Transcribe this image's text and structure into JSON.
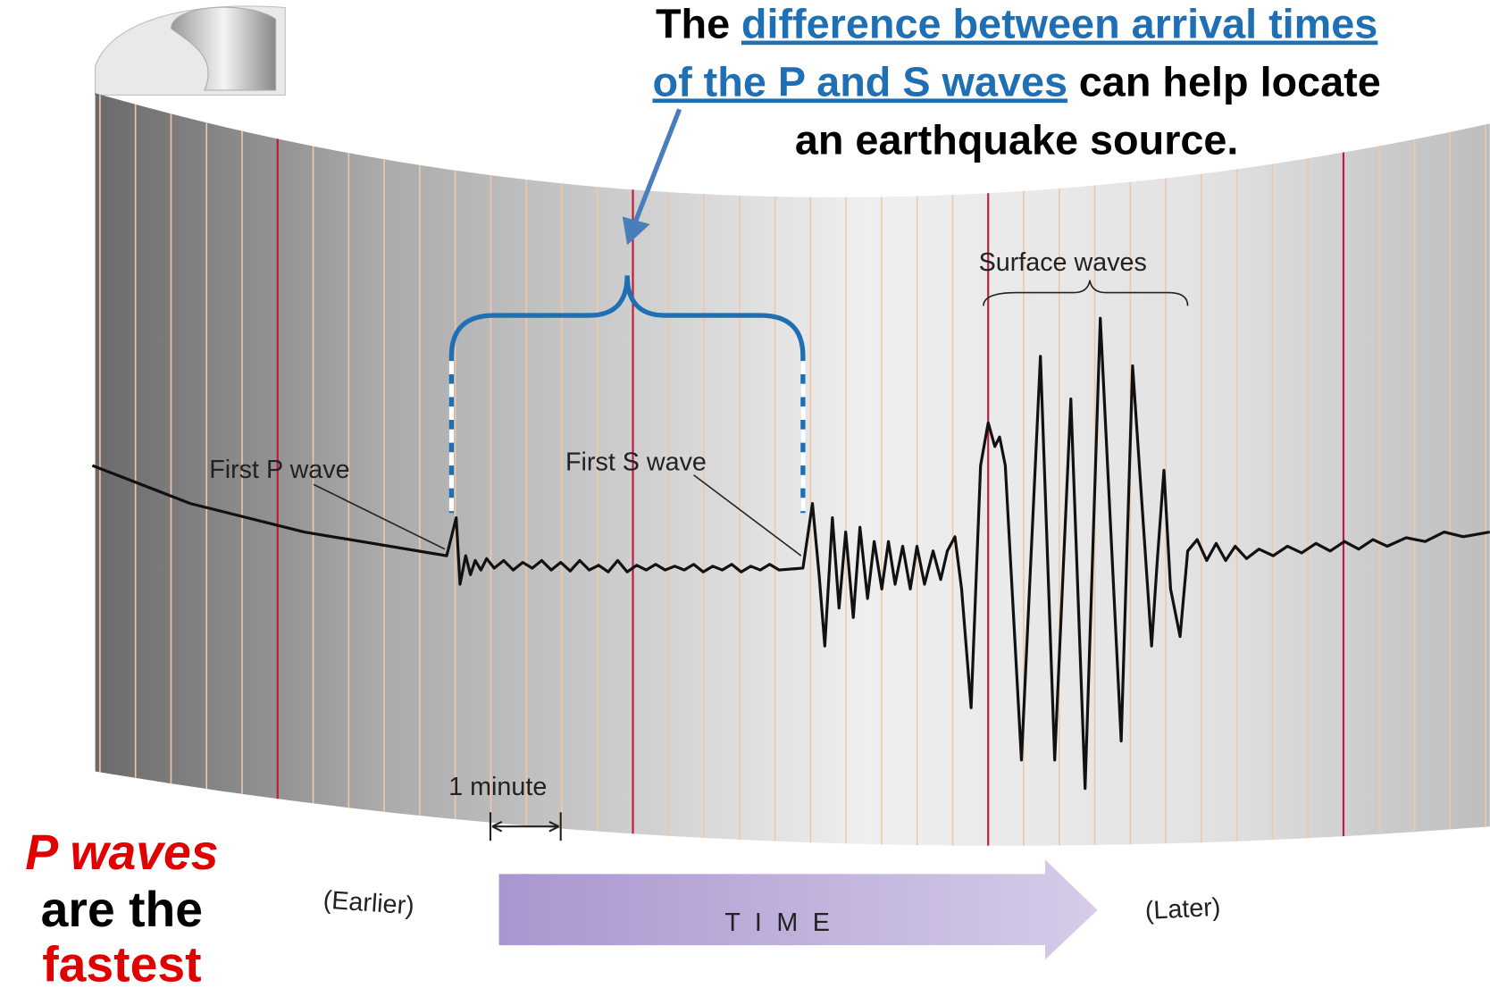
{
  "headline": {
    "lines": [
      [
        "The",
        "difference between arrival times"
      ],
      [
        "of the P and S waves",
        "can help locate"
      ],
      [
        "an earthquake source."
      ]
    ]
  },
  "labels": {
    "first_p": "First P wave",
    "first_s": "First S wave",
    "surface": "Surface waves",
    "minute": "1 minute",
    "earlier": "(Earlier)",
    "time": "T I M E",
    "later": "(Later)"
  },
  "note": {
    "lines": [
      "P waves",
      "are the",
      "fastest"
    ]
  }
}
